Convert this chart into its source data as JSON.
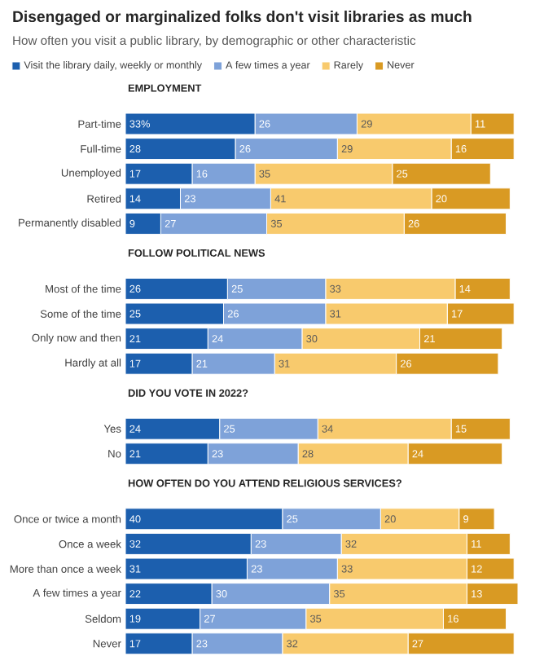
{
  "chart_data": [
    {
      "type": "bar",
      "orientation": "horizontal",
      "stacked": true,
      "data_labels": true,
      "legend": "top",
      "title": "Disengaged or marginalized folks don't visit libraries as much",
      "subtitle": "How often you visit a public library, by demographic or other characteristic",
      "annotations": [
        "EMPLOYMENT"
      ],
      "categories": [
        "Part-time",
        "Full-time",
        "Unemployed",
        "Retired",
        "Permanently disabled"
      ],
      "series": [
        {
          "name": "Visit the library daily, weekly or monthly",
          "color": "#1c5fae",
          "values": [
            33,
            28,
            17,
            14,
            9
          ],
          "value_labels": [
            "33%",
            "28",
            "17",
            "14",
            "9"
          ]
        },
        {
          "name": "A few times a year",
          "color": "#7ea2d9",
          "values": [
            26,
            26,
            16,
            23,
            27
          ]
        },
        {
          "name": "Rarely",
          "color": "#f8ca6d",
          "values": [
            29,
            29,
            35,
            41,
            35
          ]
        },
        {
          "name": "Never",
          "color": "#d99a23",
          "values": [
            11,
            16,
            25,
            20,
            26
          ]
        }
      ]
    },
    {
      "type": "bar",
      "orientation": "horizontal",
      "stacked": true,
      "data_labels": true,
      "title": "FOLLOW POLITICAL NEWS",
      "categories": [
        "Most of the time",
        "Some of the time",
        "Only now and then",
        "Hardly at all"
      ],
      "series": [
        {
          "color": "#1c5fae",
          "values": [
            26,
            25,
            21,
            17
          ],
          "value_labels": [
            "26",
            "25",
            "21",
            "17"
          ]
        },
        {
          "color": "#7ea2d9",
          "values": [
            25,
            26,
            24,
            21
          ]
        },
        {
          "color": "#f8ca6d",
          "values": [
            33,
            31,
            30,
            31
          ]
        },
        {
          "color": "#d99a23",
          "values": [
            14,
            17,
            21,
            26
          ]
        }
      ]
    },
    {
      "type": "bar",
      "orientation": "horizontal",
      "stacked": true,
      "data_labels": true,
      "title": "DID YOU VOTE IN 2022?",
      "categories": [
        "Yes",
        "No"
      ],
      "series": [
        {
          "color": "#1c5fae",
          "values": [
            24,
            21
          ]
        },
        {
          "color": "#7ea2d9",
          "values": [
            25,
            23
          ]
        },
        {
          "color": "#f8ca6d",
          "values": [
            34,
            28
          ]
        },
        {
          "color": "#d99a23",
          "values": [
            15,
            24
          ]
        }
      ]
    },
    {
      "type": "bar",
      "orientation": "horizontal",
      "stacked": true,
      "data_labels": true,
      "title": "HOW OFTEN DO YOU ATTEND RELIGIOUS SERVICES?",
      "categories": [
        "Once or twice a month",
        "Once a week",
        "More than once a week",
        "A few times a year",
        "Seldom",
        "Never"
      ],
      "series": [
        {
          "color": "#1c5fae",
          "values": [
            40,
            32,
            31,
            22,
            19,
            17
          ]
        },
        {
          "color": "#7ea2d9",
          "values": [
            25,
            23,
            23,
            30,
            27,
            23
          ]
        },
        {
          "color": "#f8ca6d",
          "values": [
            20,
            32,
            33,
            35,
            35,
            32
          ]
        },
        {
          "color": "#d99a23",
          "values": [
            9,
            11,
            12,
            13,
            16,
            27
          ]
        }
      ]
    }
  ]
}
